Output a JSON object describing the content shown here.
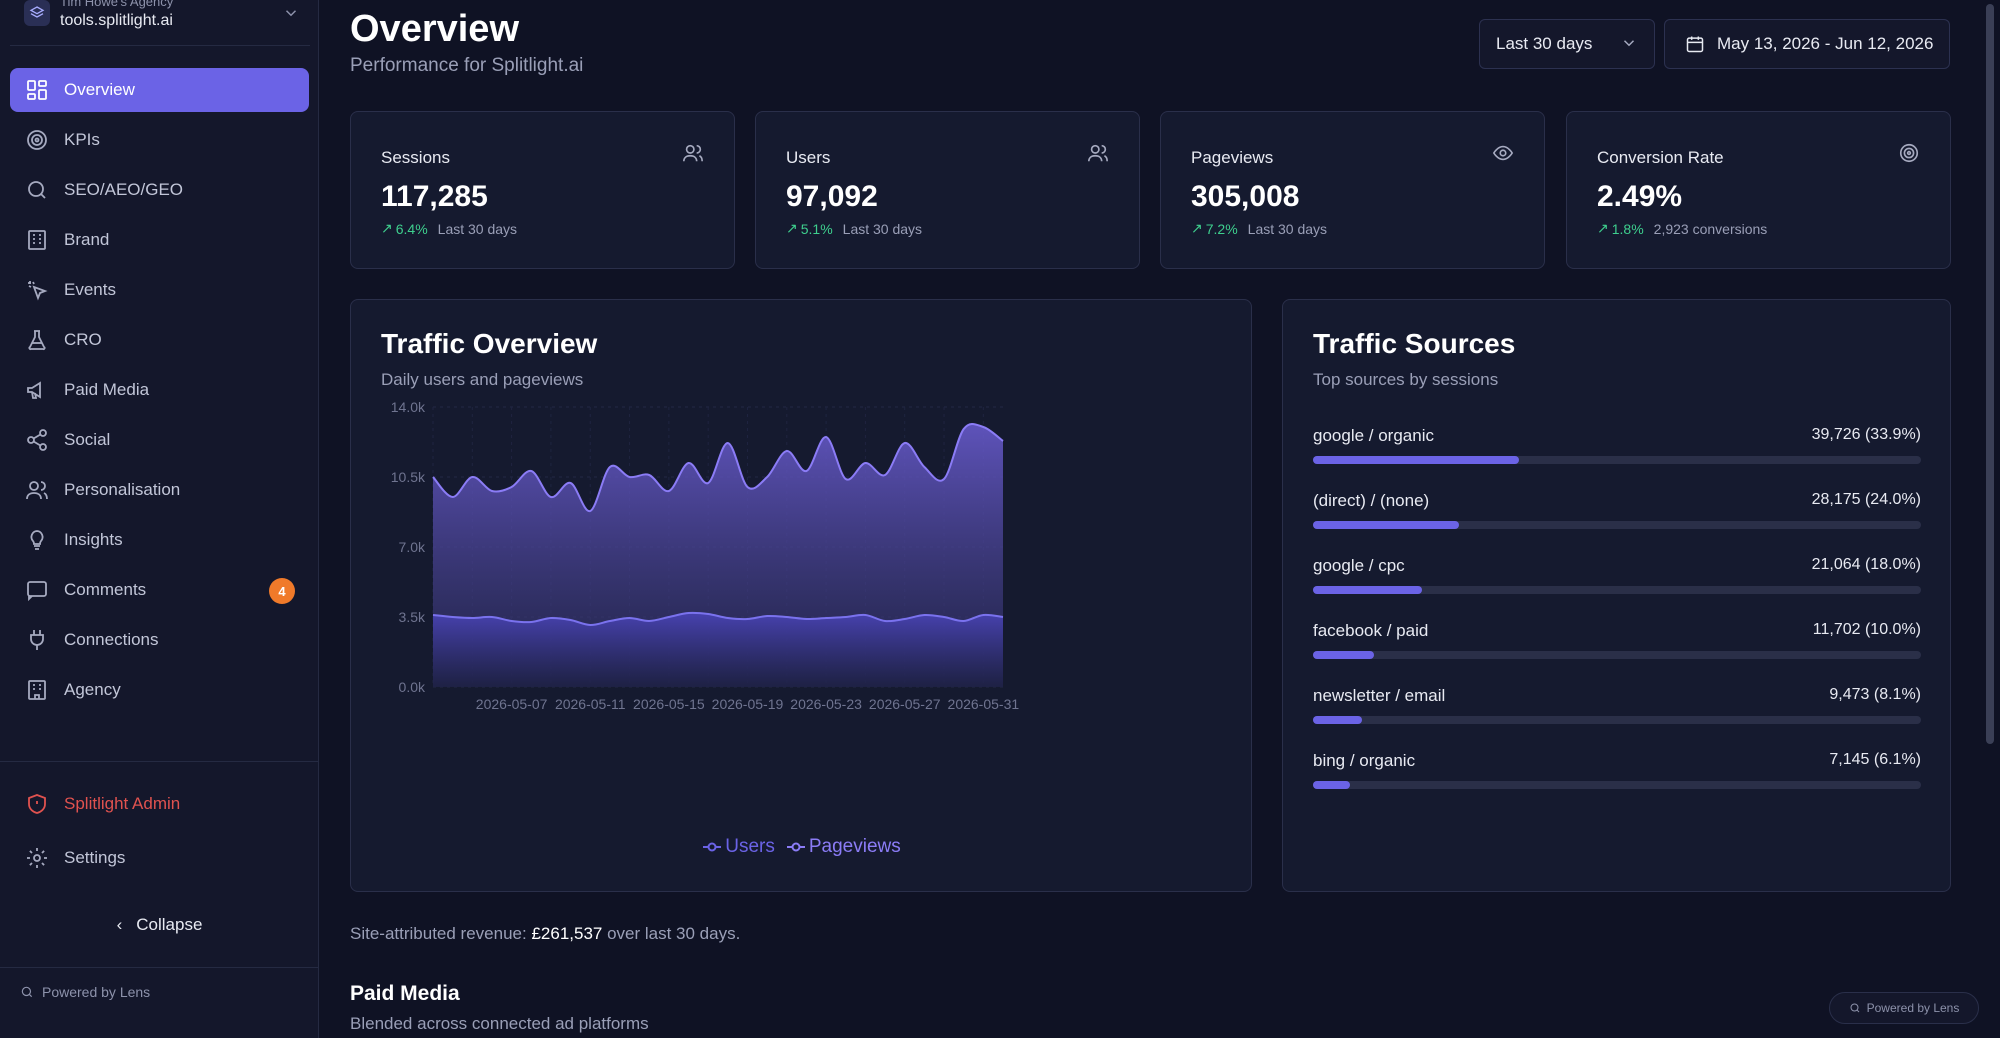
{
  "workspace": {
    "agency": "Tim Howe's Agency",
    "domain": "tools.splitlight.ai"
  },
  "nav": {
    "items": [
      {
        "label": "Overview",
        "icon": "grid-icon",
        "active": true
      },
      {
        "label": "KPIs",
        "icon": "target-icon"
      },
      {
        "label": "SEO/AEO/GEO",
        "icon": "search-icon"
      },
      {
        "label": "Brand",
        "icon": "building-icon"
      },
      {
        "label": "Events",
        "icon": "cursor-click-icon"
      },
      {
        "label": "CRO",
        "icon": "flask-icon"
      },
      {
        "label": "Paid Media",
        "icon": "megaphone-icon"
      },
      {
        "label": "Social",
        "icon": "share-icon"
      },
      {
        "label": "Personalisation",
        "icon": "users-icon"
      },
      {
        "label": "Insights",
        "icon": "lightbulb-icon"
      },
      {
        "label": "Comments",
        "icon": "message-icon",
        "badge": "4"
      },
      {
        "label": "Connections",
        "icon": "plug-icon"
      },
      {
        "label": "Agency",
        "icon": "building-icon"
      }
    ],
    "admin_label": "Splitlight Admin",
    "settings_label": "Settings",
    "collapse_label": "Collapse",
    "powered_by": "Powered by Lens"
  },
  "header": {
    "title": "Overview",
    "subtitle": "Performance for Splitlight.ai",
    "range_selected": "Last 30 days",
    "date_range": "May 13, 2026 - Jun 12, 2026"
  },
  "stats": [
    {
      "label": "Sessions",
      "value": "117,285",
      "delta": "6.4%",
      "foot": "Last 30 days",
      "icon": "users-icon"
    },
    {
      "label": "Users",
      "value": "97,092",
      "delta": "5.1%",
      "foot": "Last 30 days",
      "icon": "users-icon"
    },
    {
      "label": "Pageviews",
      "value": "305,008",
      "delta": "7.2%",
      "foot": "Last 30 days",
      "icon": "eye-icon"
    },
    {
      "label": "Conversion Rate",
      "value": "2.49%",
      "delta": "1.8%",
      "foot": "2,923 conversions",
      "icon": "target-icon"
    }
  ],
  "traffic_overview": {
    "title": "Traffic Overview",
    "subtitle": "Daily users and pageviews"
  },
  "chart_data": {
    "type": "area",
    "x": [
      "2026-05-03",
      "2026-05-04",
      "2026-05-05",
      "2026-05-06",
      "2026-05-07",
      "2026-05-08",
      "2026-05-09",
      "2026-05-10",
      "2026-05-11",
      "2026-05-12",
      "2026-05-13",
      "2026-05-14",
      "2026-05-15",
      "2026-05-16",
      "2026-05-17",
      "2026-05-18",
      "2026-05-19",
      "2026-05-20",
      "2026-05-21",
      "2026-05-22",
      "2026-05-23",
      "2026-05-24",
      "2026-05-25",
      "2026-05-26",
      "2026-05-27",
      "2026-05-28",
      "2026-05-29",
      "2026-05-30",
      "2026-05-31",
      "2026-06-01"
    ],
    "x_ticks": [
      "2026-05-07",
      "2026-05-11",
      "2026-05-15",
      "2026-05-19",
      "2026-05-23",
      "2026-05-27",
      "2026-05-31"
    ],
    "series": [
      {
        "name": "Users",
        "color": "#6b63e6",
        "values": [
          3600,
          3500,
          3450,
          3500,
          3300,
          3250,
          3450,
          3350,
          3100,
          3300,
          3450,
          3300,
          3500,
          3700,
          3650,
          3450,
          3400,
          3550,
          3500,
          3400,
          3450,
          3500,
          3600,
          3300,
          3400,
          3600,
          3500,
          3300,
          3600,
          3500
        ]
      },
      {
        "name": "Pageviews",
        "color": "#8b7cf6",
        "values": [
          10500,
          9500,
          10500,
          9800,
          10000,
          10800,
          9500,
          10200,
          8800,
          11000,
          10500,
          10600,
          9800,
          11200,
          10200,
          12200,
          10000,
          10500,
          11800,
          10800,
          12500,
          10400,
          11200,
          10600,
          12200,
          11000,
          10400,
          12900,
          13000,
          12300
        ]
      }
    ],
    "ylim": [
      0,
      14000
    ],
    "y_ticks": [
      "0.0k",
      "3.5k",
      "7.0k",
      "10.5k",
      "14.0k"
    ],
    "legend": "bottom",
    "grid": true
  },
  "traffic_sources": {
    "title": "Traffic Sources",
    "subtitle": "Top sources by sessions",
    "items": [
      {
        "name": "google / organic",
        "value": "39,726 (33.9%)",
        "pct": 33.9
      },
      {
        "name": "(direct) / (none)",
        "value": "28,175 (24.0%)",
        "pct": 24.0
      },
      {
        "name": "google / cpc",
        "value": "21,064 (18.0%)",
        "pct": 18.0
      },
      {
        "name": "facebook / paid",
        "value": "11,702 (10.0%)",
        "pct": 10.0
      },
      {
        "name": "newsletter / email",
        "value": "9,473 (8.1%)",
        "pct": 8.1
      },
      {
        "name": "bing / organic",
        "value": "7,145 (6.1%)",
        "pct": 6.1
      }
    ]
  },
  "revenue": {
    "prefix": "Site-attributed revenue: ",
    "amount": "£261,537",
    "suffix": " over last 30 days."
  },
  "paid_media": {
    "title": "Paid Media",
    "subtitle": "Blended across connected ad platforms"
  },
  "powered_by_main": "Powered by Lens",
  "colors": {
    "accent": "#6b63e6",
    "positive": "#3ecf8e",
    "admin": "#e0524f",
    "badge": "#f07a2a"
  }
}
